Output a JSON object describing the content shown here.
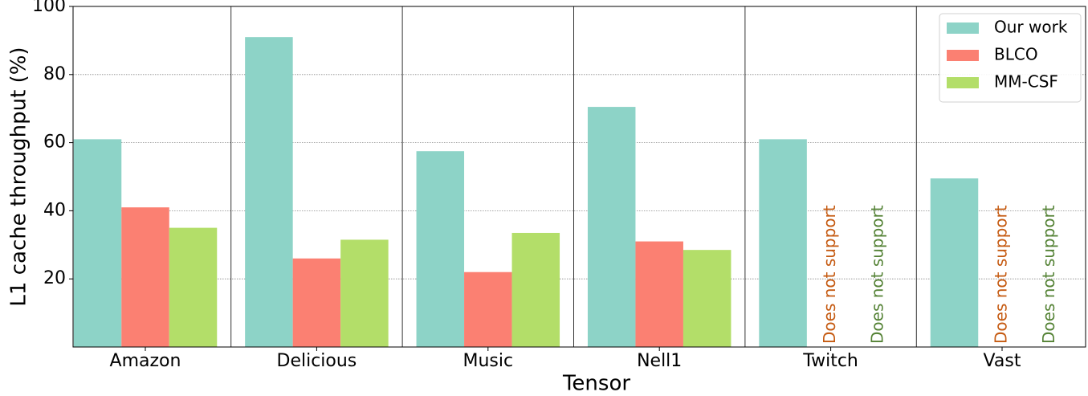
{
  "chart_data": {
    "type": "bar",
    "x_label": "Tensor",
    "y_label": "L1 cache throughput (%)",
    "categories": [
      "Amazon",
      "Delicious",
      "Music",
      "Nell1",
      "Twitch",
      "Vast"
    ],
    "series": [
      {
        "name": "Our work",
        "color": "#8dd3c7",
        "values": [
          61,
          91,
          57.5,
          70.5,
          61,
          49.5
        ]
      },
      {
        "name": "BLCO",
        "color": "#fb8072",
        "values": [
          41,
          26,
          22,
          31,
          null,
          null
        ],
        "value_labels": [
          null,
          null,
          null,
          null,
          "Does not support",
          "Does not support"
        ],
        "value_label_color": "#c55a11"
      },
      {
        "name": "MM-CSF",
        "color": "#b3de69",
        "values": [
          35,
          31.5,
          33.5,
          28.5,
          null,
          null
        ],
        "value_labels": [
          null,
          null,
          null,
          null,
          "Does not support",
          "Does not support"
        ],
        "value_label_color": "#548235"
      }
    ],
    "ylim": [
      0,
      100
    ],
    "yticks": [
      20,
      40,
      60,
      80,
      100
    ],
    "grid": true,
    "legend": "upper right"
  }
}
